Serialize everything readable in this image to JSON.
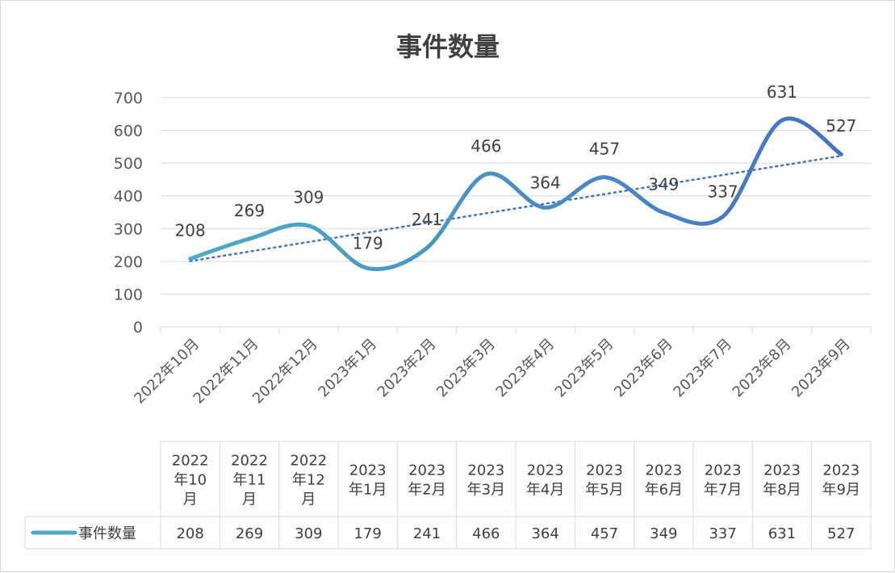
{
  "chart_data": {
    "type": "line",
    "title": "事件数量",
    "categories": [
      "2022年10月",
      "2022年11月",
      "2022年12月",
      "2023年1月",
      "2023年2月",
      "2023年3月",
      "2023年4月",
      "2023年5月",
      "2023年6月",
      "2023年7月",
      "2023年8月",
      "2023年9月"
    ],
    "table_headers": [
      [
        "2022",
        "年10",
        "月"
      ],
      [
        "2022",
        "年11",
        "月"
      ],
      [
        "2022",
        "年12",
        "月"
      ],
      [
        "2023",
        "年1月"
      ],
      [
        "2023",
        "年2月"
      ],
      [
        "2023",
        "年3月"
      ],
      [
        "2023",
        "年4月"
      ],
      [
        "2023",
        "年5月"
      ],
      [
        "2023",
        "年6月"
      ],
      [
        "2023",
        "年7月"
      ],
      [
        "2023",
        "年8月"
      ],
      [
        "2023",
        "年9月"
      ]
    ],
    "series": [
      {
        "name": "事件数量",
        "values": [
          208,
          269,
          309,
          179,
          241,
          466,
          364,
          457,
          349,
          337,
          631,
          527
        ]
      }
    ],
    "trendline": {
      "type": "linear",
      "style": "dotted"
    },
    "ylim": [
      0,
      700
    ],
    "yticks": [
      0,
      100,
      200,
      300,
      400,
      500,
      600,
      700
    ],
    "grid": true,
    "data_table": true,
    "colors": {
      "line_start": "#4bacc6",
      "line_end": "#4472c4",
      "trend": "#4472c4",
      "grid": "#d9d9d9",
      "axis_text": "#595959"
    }
  }
}
